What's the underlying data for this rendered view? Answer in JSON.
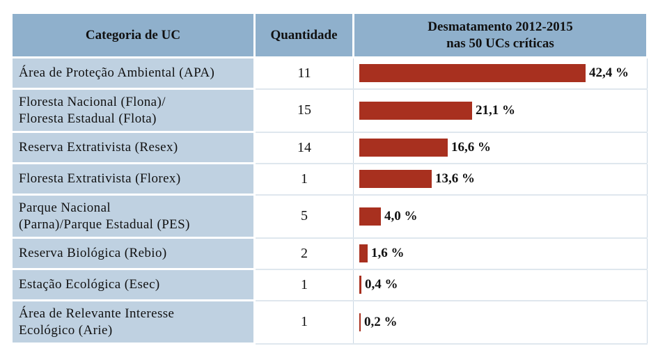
{
  "table": {
    "headers": {
      "category": "Categoria de UC",
      "quantity": "Quantidade",
      "deforestation_line1": "Desmatamento 2012-2015",
      "deforestation_line2": "nas 50 UCs críticas"
    },
    "bar_color": "#a8301f",
    "header_bg": "#8fb0cc",
    "category_bg": "#bfd1e1"
  },
  "chart_data": {
    "type": "bar",
    "orientation": "horizontal",
    "categories": [
      [
        "Área de Proteção Ambiental (APA)"
      ],
      [
        "Floresta Nacional (Flona)/",
        "Floresta Estadual (Flota)"
      ],
      [
        "Reserva Extrativista (Resex)"
      ],
      [
        "Floresta Extrativista (Florex)"
      ],
      [
        "Parque Nacional",
        "(Parna)/Parque Estadual (PES)"
      ],
      [
        "Reserva Biológica (Rebio)"
      ],
      [
        "Estação Ecológica (Esec)"
      ],
      [
        "Área de Relevante Interesse",
        "Ecológico (Arie)"
      ]
    ],
    "quantities": [
      "11",
      "15",
      "14",
      "1",
      "5",
      "2",
      "1",
      "1"
    ],
    "values": [
      42.4,
      21.1,
      16.6,
      13.6,
      4.0,
      1.6,
      0.4,
      0.2
    ],
    "value_labels": [
      "42,4 %",
      "21,1 %",
      "16,6 %",
      "13,6 %",
      "4,0 %",
      "1,6 %",
      "0,4 %",
      "0,2 %"
    ],
    "title": "Desmatamento 2012-2015 nas 50 UCs críticas"
  }
}
